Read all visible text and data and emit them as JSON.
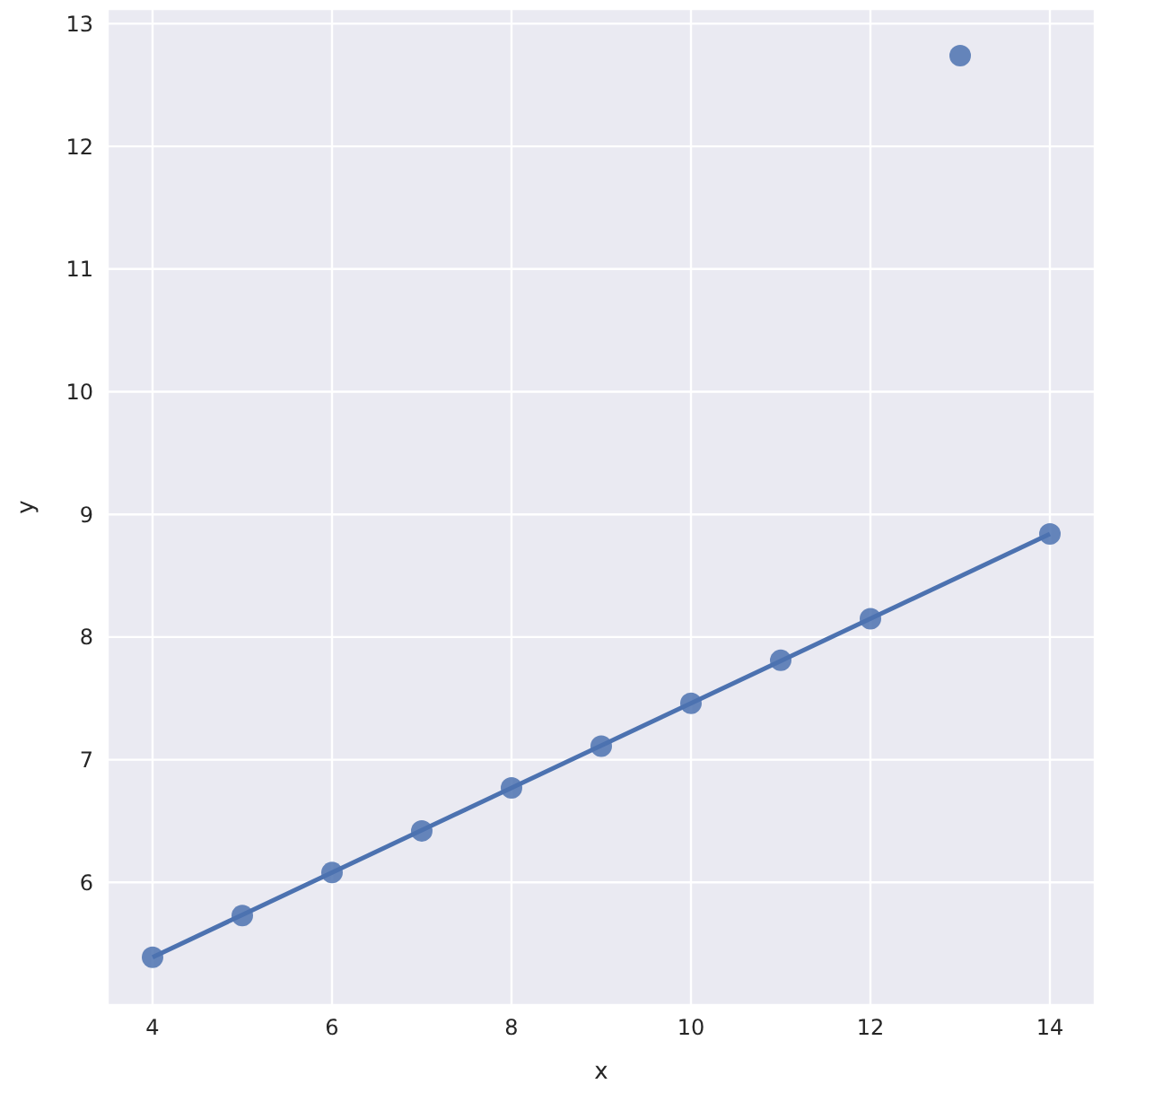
{
  "chart_data": {
    "type": "scatter",
    "xlabel": "x",
    "ylabel": "y",
    "xlim": [
      3.5,
      14.5
    ],
    "ylim": [
      5,
      13.12
    ],
    "xticks": [
      4,
      6,
      8,
      10,
      12,
      14
    ],
    "yticks": [
      6,
      7,
      8,
      9,
      10,
      11,
      12,
      13
    ],
    "grid": true,
    "series": [
      {
        "marker": "circle",
        "color": "#4c72b0",
        "x": [
          10,
          8,
          13,
          9,
          11,
          14,
          6,
          4,
          12,
          7,
          5
        ],
        "values": [
          7.46,
          6.77,
          12.74,
          7.11,
          7.81,
          8.84,
          6.08,
          5.39,
          8.15,
          6.42,
          5.73
        ]
      },
      {
        "type": "line",
        "marker": "none",
        "color": "#4c72b0",
        "x": [
          4,
          14
        ],
        "values": [
          5.39,
          8.84
        ]
      }
    ]
  }
}
